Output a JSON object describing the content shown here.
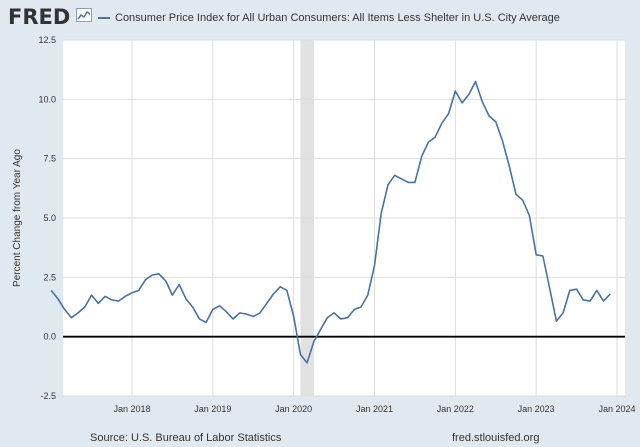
{
  "header": {
    "logo_text": "FRED",
    "logo_icon": "fred-chart-icon",
    "legend_text": "Consumer Price Index for All Urban Consumers: All Items Less Shelter in U.S. City Average"
  },
  "footer": {
    "source": "Source: U.S. Bureau of Labor Statistics",
    "url": "fred.stlouisfed.org"
  },
  "colors": {
    "series": "#4572a7",
    "background": "#e1e9f0",
    "plot_background": "#ffffff",
    "recession": "#e1e1e1",
    "zero_line": "#000000"
  },
  "chart_data": {
    "type": "line",
    "title": "Consumer Price Index for All Urban Consumers: All Items Less Shelter in U.S. City Average",
    "xlabel": "",
    "ylabel": "Percent Change from Year Ago",
    "ylim": [
      -2.5,
      12.5
    ],
    "y_ticks": [
      "12.5",
      "10.0",
      "7.5",
      "5.0",
      "2.5",
      "0.0",
      "-2.5"
    ],
    "x_ticks": [
      "Jan 2018",
      "Jan 2019",
      "Jan 2020",
      "Jan 2021",
      "Jan 2022",
      "Jan 2023",
      "Jan 2024"
    ],
    "recession": {
      "start": "2020-02",
      "end": "2020-04"
    },
    "series": [
      {
        "name": "Consumer Price Index for All Urban Consumers: All Items Less Shelter in U.S. City Average",
        "start": "2017-01",
        "frequency": "monthly",
        "values": [
          1.95,
          1.6,
          1.15,
          0.8,
          1.0,
          1.25,
          1.75,
          1.4,
          1.7,
          1.55,
          1.5,
          1.7,
          1.85,
          1.95,
          2.4,
          2.6,
          2.65,
          2.35,
          1.75,
          2.2,
          1.6,
          1.25,
          0.75,
          0.6,
          1.15,
          1.3,
          1.05,
          0.75,
          1.0,
          0.95,
          0.85,
          1.0,
          1.4,
          1.8,
          2.1,
          1.95,
          0.85,
          -0.75,
          -1.1,
          -0.2,
          0.3,
          0.8,
          1.0,
          0.75,
          0.8,
          1.15,
          1.25,
          1.75,
          3.0,
          5.2,
          6.4,
          6.8,
          6.65,
          6.5,
          6.5,
          7.6,
          8.2,
          8.4,
          9.0,
          9.4,
          10.35,
          9.85,
          10.2,
          10.75,
          9.9,
          9.3,
          9.05,
          8.25,
          7.2,
          6.0,
          5.75,
          5.1,
          3.45,
          3.4,
          2.05,
          0.65,
          1.0,
          1.95,
          2.0,
          1.55,
          1.5,
          1.95,
          1.5,
          1.8
        ]
      }
    ]
  }
}
